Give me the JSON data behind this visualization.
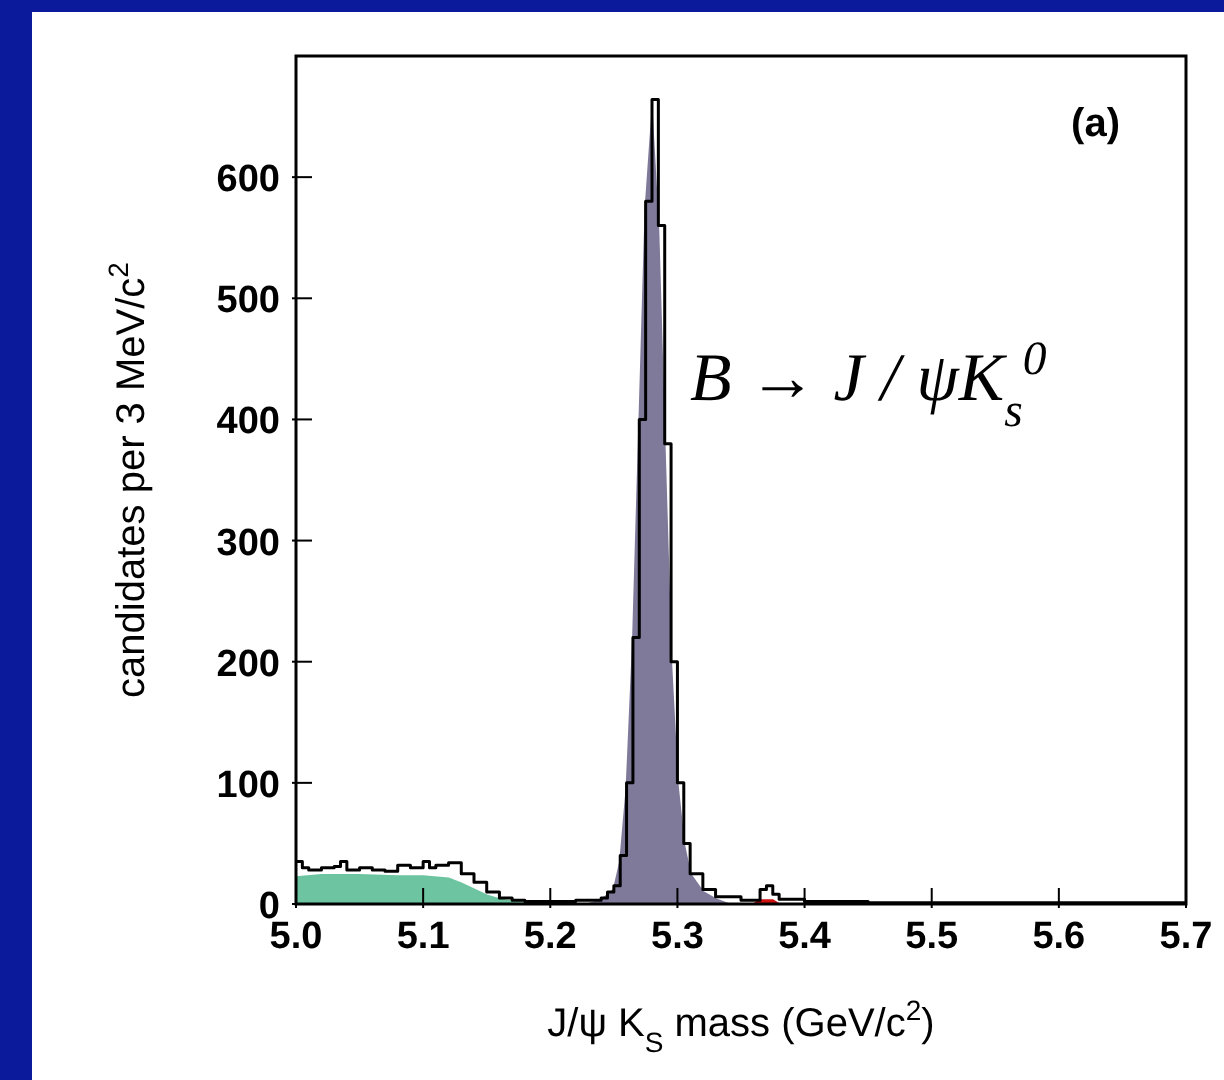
{
  "chart_data": {
    "type": "step",
    "xlabel": "J/ψ K$_{S}$ mass (GeV/c$^{2}$)",
    "ylabel": "candidates per 3 MeV/c$^{2}$",
    "annotations": [
      "(a)",
      "B → J / ψK$_{s}$$^{0}$"
    ],
    "xlim": [
      5.0,
      5.7
    ],
    "ylim": [
      0,
      700
    ],
    "xticks": [
      {
        "value": 5.0,
        "label": "5.0"
      },
      5.1,
      5.2,
      5.3,
      5.4,
      5.5,
      5.6,
      5.7
    ],
    "yticks": [
      0,
      100,
      200,
      300,
      400,
      500,
      600
    ],
    "series": [
      {
        "type": "area",
        "color": "#6cc4a0",
        "x": [
          5.0,
          5.02,
          5.05,
          5.08,
          5.1,
          5.12,
          5.13,
          5.14,
          5.15,
          5.16,
          5.17,
          5.18,
          5.19
        ],
        "values": [
          22,
          24,
          24,
          23,
          23,
          21,
          17,
          12,
          7,
          4,
          2,
          1,
          0
        ]
      },
      {
        "type": "area",
        "color": "#7f7a9a",
        "x": [
          5.23,
          5.24,
          5.25,
          5.255,
          5.26,
          5.265,
          5.27,
          5.275,
          5.28,
          5.285,
          5.29,
          5.295,
          5.3,
          5.305,
          5.31,
          5.32,
          5.33,
          5.34
        ],
        "values": [
          0,
          3,
          12,
          35,
          95,
          215,
          395,
          575,
          650,
          555,
          375,
          200,
          100,
          50,
          25,
          10,
          4,
          0
        ]
      },
      {
        "type": "area",
        "color": "#d01010",
        "x": [
          5.36,
          5.365,
          5.37,
          5.375,
          5.38
        ],
        "values": [
          0,
          3,
          3,
          3,
          0
        ]
      },
      {
        "color": "#000000",
        "x": [
          5.0,
          5.005,
          5.01,
          5.02,
          5.03,
          5.035,
          5.04,
          5.05,
          5.06,
          5.07,
          5.08,
          5.09,
          5.1,
          5.105,
          5.11,
          5.12,
          5.13,
          5.14,
          5.15,
          5.16,
          5.17,
          5.18,
          5.2,
          5.22,
          5.24,
          5.245,
          5.25,
          5.255,
          5.26,
          5.265,
          5.27,
          5.275,
          5.28,
          5.285,
          5.29,
          5.295,
          5.3,
          5.305,
          5.31,
          5.32,
          5.33,
          5.35,
          5.365,
          5.37,
          5.375,
          5.38,
          5.4,
          5.45,
          5.5,
          5.6,
          5.7
        ],
        "values": [
          35,
          30,
          28,
          30,
          31,
          35,
          28,
          30,
          28,
          27,
          32,
          30,
          35,
          30,
          32,
          34,
          25,
          18,
          10,
          5,
          3,
          2,
          2,
          3,
          5,
          10,
          15,
          40,
          100,
          220,
          400,
          580,
          664,
          560,
          380,
          200,
          100,
          50,
          25,
          12,
          6,
          3,
          12,
          15,
          8,
          4,
          2,
          1,
          1,
          1,
          1
        ]
      }
    ]
  }
}
